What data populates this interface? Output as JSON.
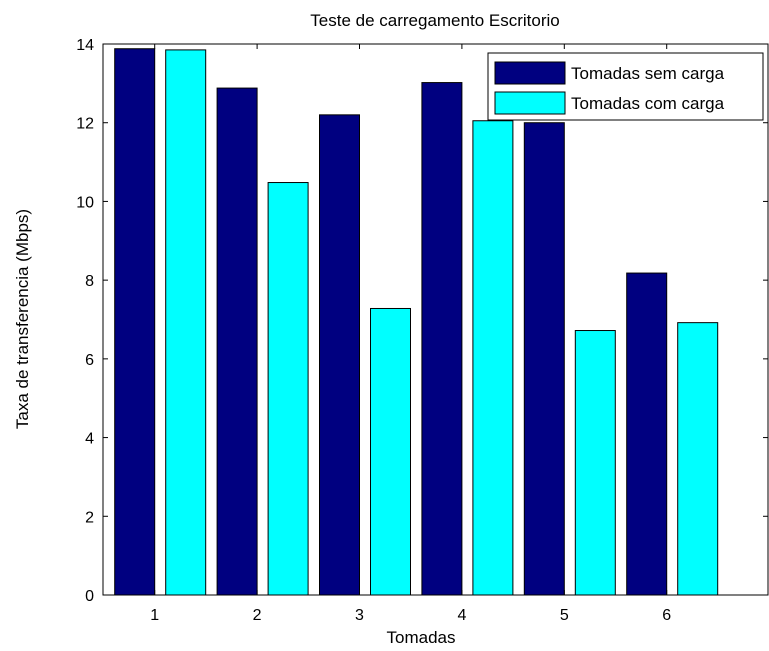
{
  "chart_data": {
    "type": "bar",
    "title": "Teste de carregamento Escritorio",
    "xlabel": "Tomadas",
    "ylabel": "Taxa de transferencia (Mbps)",
    "categories": [
      "1",
      "2",
      "3",
      "4",
      "5",
      "6"
    ],
    "ylim": [
      0,
      14
    ],
    "yticks": [
      0,
      2,
      4,
      6,
      8,
      10,
      12,
      14
    ],
    "grid": false,
    "legend_position": "top-right",
    "series": [
      {
        "name": "Tomadas sem carga",
        "color": "#000080",
        "values": [
          13.88,
          12.88,
          12.2,
          13.02,
          12.0,
          8.18
        ]
      },
      {
        "name": "Tomadas com carga",
        "color": "#00ffff",
        "values": [
          13.85,
          10.48,
          7.28,
          12.05,
          6.72,
          6.92
        ]
      }
    ]
  }
}
